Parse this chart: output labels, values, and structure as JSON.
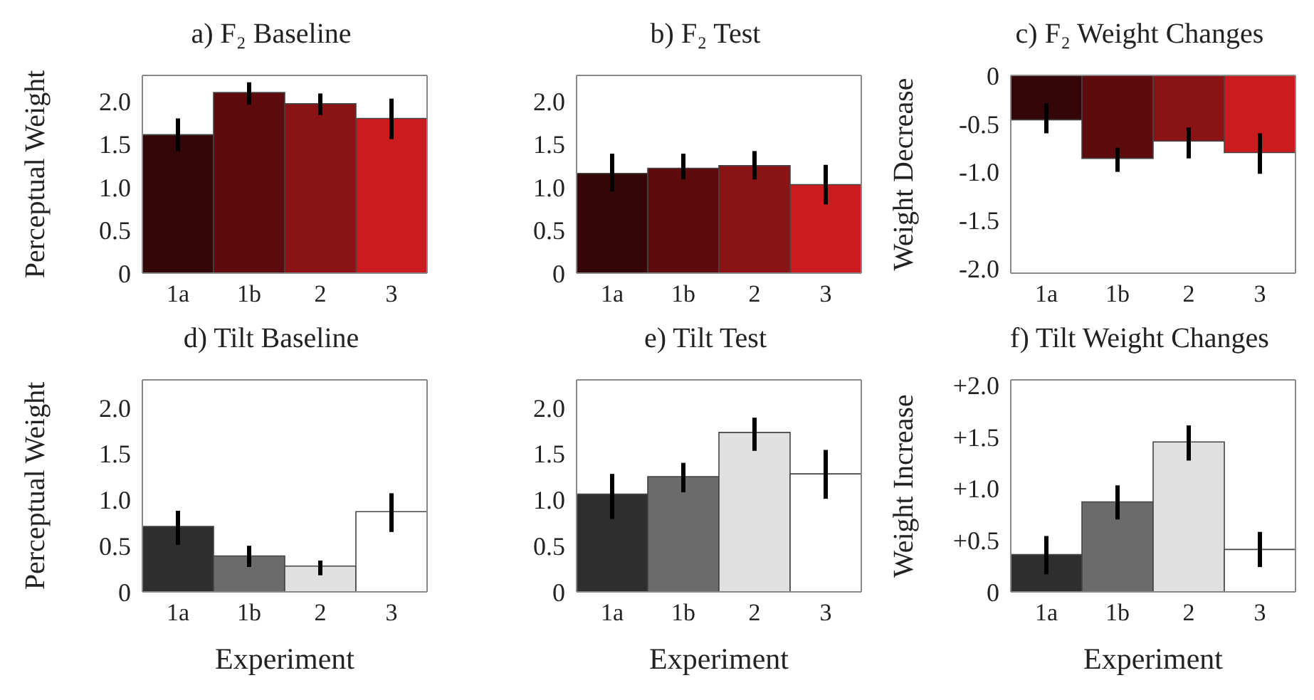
{
  "chart_data": [
    {
      "type": "bar",
      "title": "a) F₂ Baseline",
      "ylabel": "Perceptual Weight",
      "categories": [
        "1a",
        "1b",
        "2",
        "3"
      ],
      "values": [
        1.61,
        2.1,
        1.97,
        1.8
      ],
      "colors": [
        "#350608",
        "#5e0b0e",
        "#8a1316",
        "#cc1b1f"
      ],
      "errors": [
        [
          1.42,
          1.8
        ],
        [
          1.96,
          2.22
        ],
        [
          1.84,
          2.09
        ],
        [
          1.56,
          2.03
        ]
      ],
      "ylim": [
        0,
        2.3
      ],
      "yticks": [
        {
          "value": 0,
          "label": "0"
        },
        {
          "value": 0.5,
          "label": "0.5"
        },
        {
          "value": 1,
          "label": "1.0"
        },
        {
          "value": 1.5,
          "label": "1.5"
        },
        {
          "value": 2,
          "label": "2.0"
        }
      ],
      "grid": false
    },
    {
      "type": "bar",
      "title": "b) F₂ Test",
      "categories": [
        "1a",
        "1b",
        "2",
        "3"
      ],
      "values": [
        1.16,
        1.22,
        1.25,
        1.03
      ],
      "colors": [
        "#350608",
        "#5e0b0e",
        "#8a1316",
        "#cc1b1f"
      ],
      "errors": [
        [
          0.95,
          1.39
        ],
        [
          1.09,
          1.39
        ],
        [
          1.09,
          1.42
        ],
        [
          0.8,
          1.26
        ]
      ],
      "ylim": [
        0,
        2.3
      ],
      "yticks": [
        {
          "value": 0,
          "label": "0"
        },
        {
          "value": 0.5,
          "label": "0.5"
        },
        {
          "value": 1,
          "label": "1.0"
        },
        {
          "value": 1.5,
          "label": "1.5"
        },
        {
          "value": 2,
          "label": "2.0"
        }
      ],
      "grid": false
    },
    {
      "type": "bar",
      "title": "c) F₂ Weight Changes",
      "ylabel": "Weight Decrease",
      "categories": [
        "1a",
        "1b",
        "2",
        "3"
      ],
      "values": [
        -0.46,
        -0.86,
        -0.68,
        -0.8
      ],
      "colors": [
        "#350608",
        "#5e0b0e",
        "#8a1316",
        "#cc1b1f"
      ],
      "errors": [
        [
          -0.6,
          -0.29
        ],
        [
          -1.0,
          -0.75
        ],
        [
          -0.86,
          -0.54
        ],
        [
          -1.02,
          -0.6
        ]
      ],
      "ylim": [
        -2.05,
        0
      ],
      "yticks": [
        {
          "value": -2,
          "label": "-2.0"
        },
        {
          "value": -1.5,
          "label": "-1.5"
        },
        {
          "value": -1,
          "label": "-1.0"
        },
        {
          "value": -0.5,
          "label": "-0.5"
        },
        {
          "value": 0,
          "label": "0"
        }
      ],
      "grid": false
    },
    {
      "type": "bar",
      "title": "d) Tilt Baseline",
      "ylabel": "Perceptual Weight",
      "xlabel": "Experiment",
      "categories": [
        "1a",
        "1b",
        "2",
        "3"
      ],
      "values": [
        0.71,
        0.39,
        0.28,
        0.87
      ],
      "colors": [
        "#2e2e2e",
        "#6b6b6b",
        "#e0e0e0",
        "#ffffff"
      ],
      "errors": [
        [
          0.51,
          0.88
        ],
        [
          0.27,
          0.5
        ],
        [
          0.18,
          0.34
        ],
        [
          0.65,
          1.07
        ]
      ],
      "ylim": [
        0,
        2.3
      ],
      "yticks": [
        {
          "value": 0,
          "label": "0"
        },
        {
          "value": 0.5,
          "label": "0.5"
        },
        {
          "value": 1,
          "label": "1.0"
        },
        {
          "value": 1.5,
          "label": "1.5"
        },
        {
          "value": 2,
          "label": "2.0"
        }
      ],
      "grid": false
    },
    {
      "type": "bar",
      "title": "e) Tilt Test",
      "xlabel": "Experiment",
      "categories": [
        "1a",
        "1b",
        "2",
        "3"
      ],
      "values": [
        1.06,
        1.25,
        1.73,
        1.28
      ],
      "colors": [
        "#2e2e2e",
        "#6b6b6b",
        "#e0e0e0",
        "#ffffff"
      ],
      "errors": [
        [
          0.79,
          1.28
        ],
        [
          1.08,
          1.4
        ],
        [
          1.53,
          1.89
        ],
        [
          1.01,
          1.54
        ]
      ],
      "ylim": [
        0,
        2.3
      ],
      "yticks": [
        {
          "value": 0,
          "label": "0"
        },
        {
          "value": 0.5,
          "label": "0.5"
        },
        {
          "value": 1,
          "label": "1.0"
        },
        {
          "value": 1.5,
          "label": "1.5"
        },
        {
          "value": 2,
          "label": "2.0"
        }
      ],
      "grid": false
    },
    {
      "type": "bar",
      "title": "f) Tilt Weight Changes",
      "ylabel": "Weight Increase",
      "xlabel": "Experiment",
      "categories": [
        "1a",
        "1b",
        "2",
        "3"
      ],
      "values": [
        0.36,
        0.87,
        1.45,
        0.41
      ],
      "colors": [
        "#2e2e2e",
        "#6b6b6b",
        "#e0e0e0",
        "#ffffff"
      ],
      "errors": [
        [
          0.17,
          0.54
        ],
        [
          0.7,
          1.03
        ],
        [
          1.27,
          1.61
        ],
        [
          0.24,
          0.58
        ]
      ],
      "ylim": [
        0,
        2.05
      ],
      "yticks": [
        {
          "value": 0,
          "label": "0"
        },
        {
          "value": 0.5,
          "label": "+0.5"
        },
        {
          "value": 1,
          "label": "+1.0"
        },
        {
          "value": 1.5,
          "label": "+1.5"
        },
        {
          "value": 2,
          "label": "+2.0"
        }
      ],
      "grid": false
    }
  ]
}
